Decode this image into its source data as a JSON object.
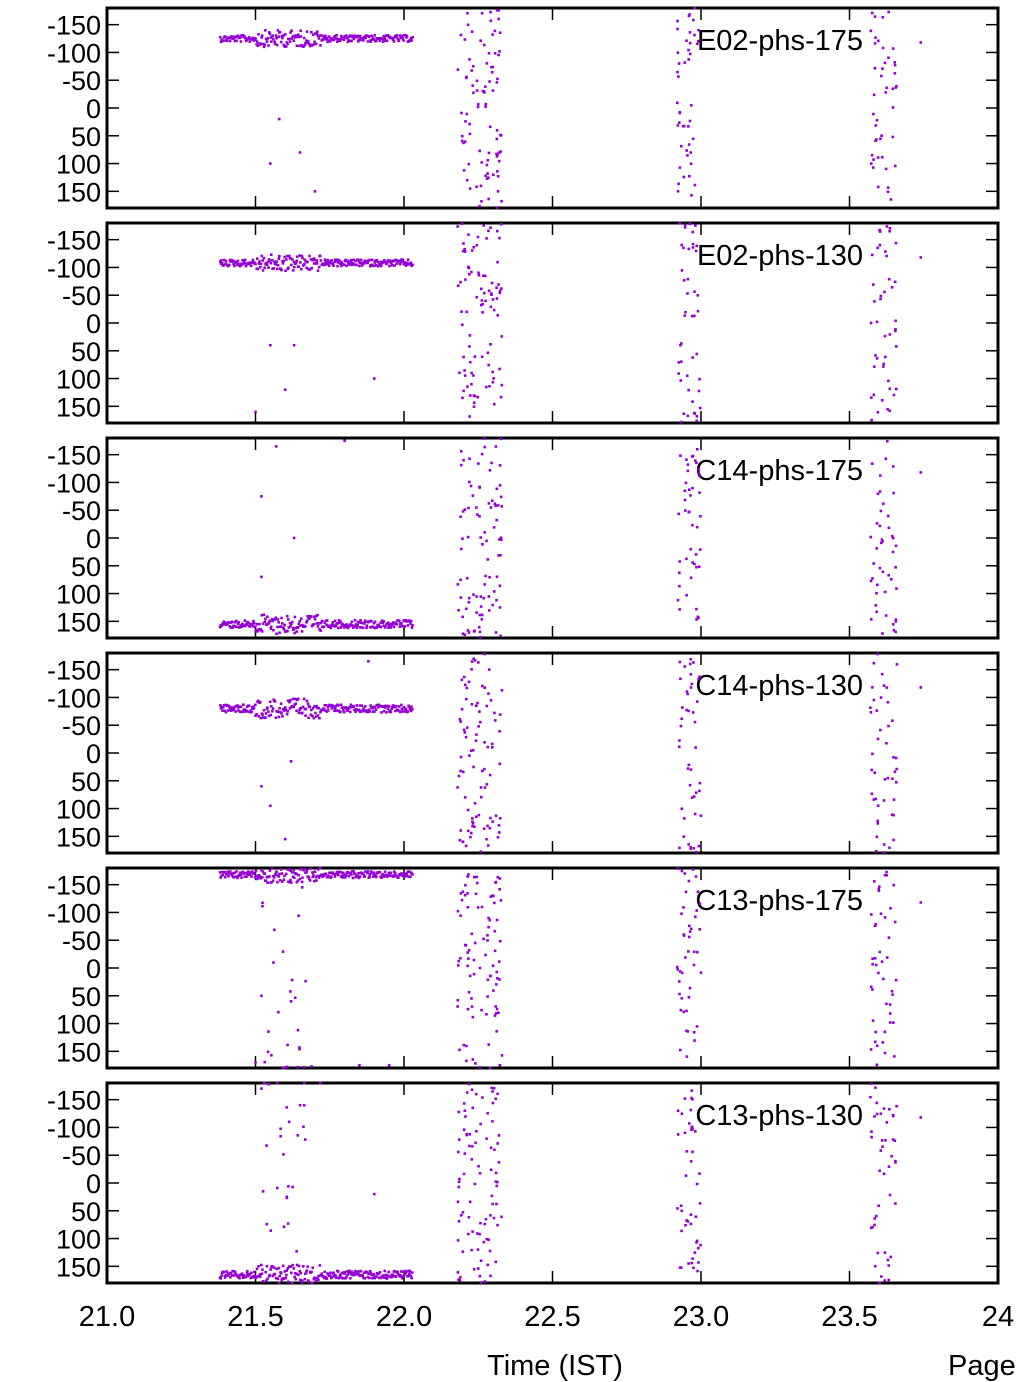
{
  "colors": {
    "points": "#9400d3",
    "axes": "#000000",
    "background": "#ffffff"
  },
  "chart_data": {
    "type": "scatter",
    "xlabel": "Time (IST)",
    "footer_text": "Page",
    "xlim": [
      21.0,
      24.0
    ],
    "x_ticks": [
      21.0,
      21.5,
      22.0,
      22.5,
      23.0,
      23.5,
      24.0
    ],
    "x_tick_labels": [
      "21.0",
      "21.5",
      "22.0",
      "22.5",
      "23.0",
      "23.5",
      "24"
    ],
    "ylim": [
      -180,
      180
    ],
    "y_inverted": true,
    "y_ticks": [
      -150,
      -100,
      -50,
      0,
      50,
      100,
      150
    ],
    "y_tick_labels": [
      "-150",
      "-100",
      "-50",
      "0",
      "50",
      "100",
      "150"
    ],
    "panels": [
      {
        "label": "E02-phs-175",
        "band_value": -125,
        "band_spread": 6,
        "scan1_pattern": "band",
        "stray_points": [
          [
            21.58,
            20
          ],
          [
            21.65,
            80
          ],
          [
            21.55,
            100
          ],
          [
            21.7,
            150
          ]
        ]
      },
      {
        "label": "E02-phs-130",
        "band_value": -108,
        "band_spread": 6,
        "scan1_pattern": "band",
        "stray_points": [
          [
            21.55,
            40
          ],
          [
            21.63,
            40
          ],
          [
            21.6,
            120
          ],
          [
            21.9,
            100
          ],
          [
            21.5,
            160
          ]
        ]
      },
      {
        "label": "C14-phs-175",
        "band_value": 155,
        "band_spread": 7,
        "scan1_pattern": "band",
        "stray_points": [
          [
            21.52,
            -75
          ],
          [
            21.63,
            0
          ],
          [
            21.52,
            70
          ],
          [
            21.57,
            -165
          ],
          [
            21.8,
            -175
          ]
        ]
      },
      {
        "label": "C14-phs-130",
        "band_value": -80,
        "band_spread": 7,
        "scan1_pattern": "band",
        "stray_points": [
          [
            21.52,
            60
          ],
          [
            21.55,
            95
          ],
          [
            21.62,
            15
          ],
          [
            21.6,
            155
          ],
          [
            21.88,
            -165
          ]
        ]
      },
      {
        "label": "C13-phs-175",
        "band_value": -168,
        "band_spread": 6,
        "scan1_pattern": "band_plus_scatter",
        "stray_points": [
          [
            21.52,
            50
          ],
          [
            21.62,
            60
          ],
          [
            21.5,
            170
          ],
          [
            21.85,
            175
          ],
          [
            21.95,
            175
          ]
        ]
      },
      {
        "label": "C13-phs-130",
        "band_value": 165,
        "band_spread": 7,
        "scan1_pattern": "band_plus_scatter",
        "stray_points": [
          [
            21.52,
            -170
          ],
          [
            21.9,
            20
          ],
          [
            21.65,
            -140
          ]
        ]
      }
    ],
    "scan_windows": [
      {
        "x_range": [
          21.38,
          22.03
        ],
        "role": "band"
      },
      {
        "x_range": [
          22.18,
          22.33
        ],
        "role": "random"
      },
      {
        "x_range": [
          22.92,
          23.0
        ],
        "role": "random"
      },
      {
        "x_range": [
          23.57,
          23.66
        ],
        "role": "random"
      }
    ],
    "isolated_point": [
      23.74,
      -118
    ]
  }
}
